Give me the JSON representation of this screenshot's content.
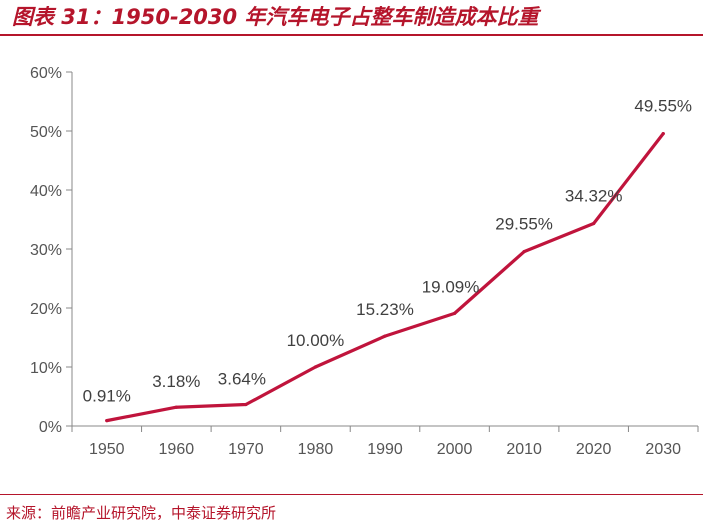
{
  "header": {
    "title": "图表 31：1950-2030 年汽车电子占整车制造成本比重"
  },
  "footer": {
    "source": "来源：前瞻产业研究院，中泰证券研究所"
  },
  "colors": {
    "accent": "#b5152b",
    "line": "#c0143c",
    "axis": "#888888",
    "text": "#404040"
  },
  "chart_data": {
    "type": "line",
    "x": [
      "1950",
      "1960",
      "1970",
      "1980",
      "1990",
      "2000",
      "2010",
      "2020",
      "2030"
    ],
    "series": [
      {
        "values": [
          0.91,
          3.18,
          3.64,
          10.0,
          15.23,
          19.09,
          29.55,
          34.32,
          49.55
        ],
        "data_labels": [
          "0.91%",
          "3.18%",
          "3.64%",
          "10.00%",
          "15.23%",
          "19.09%",
          "29.55%",
          "34.32%",
          "49.55%"
        ]
      }
    ],
    "y_ticks": [
      "0%",
      "10%",
      "20%",
      "30%",
      "40%",
      "50%",
      "60%"
    ],
    "ylim": [
      0,
      60
    ],
    "grid": false,
    "legend": "none"
  }
}
